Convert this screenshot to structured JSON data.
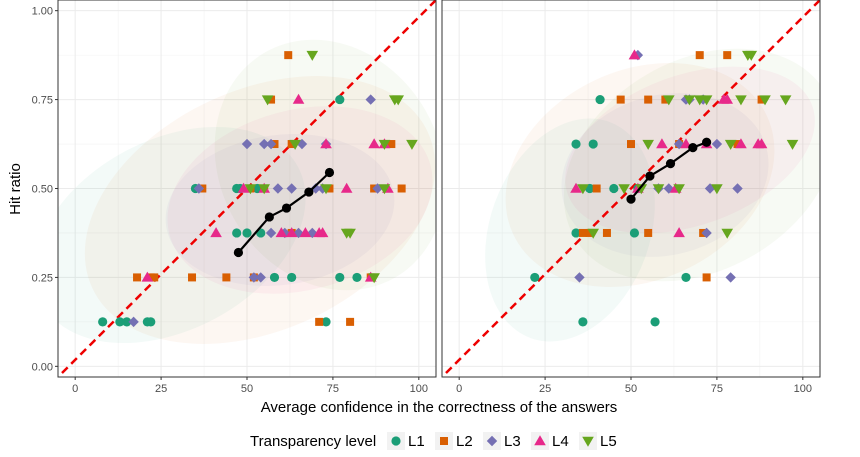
{
  "chart_data": [
    {
      "type": "scatter",
      "panel": "left",
      "xlabel": "Average confidence in the correctness of the answers",
      "ylabel": "Hit ratio",
      "xlim": [
        -5,
        105
      ],
      "ylim": [
        -0.03,
        1.03
      ],
      "xticks": [
        "0",
        "25",
        "50",
        "75",
        "100"
      ],
      "yticks": [
        "0.00",
        "0.25",
        "0.50",
        "0.75",
        "1.00"
      ],
      "grid": true,
      "reference_line": "y = x/100 (dashed red)",
      "series": [
        {
          "name": "L1",
          "points": [
            [
              8,
              0.125
            ],
            [
              13,
              0.125
            ],
            [
              15,
              0.125
            ],
            [
              21,
              0.125
            ],
            [
              22,
              0.125
            ],
            [
              35,
              0.5
            ],
            [
              47,
              0.5
            ],
            [
              48,
              0.5
            ],
            [
              47,
              0.375
            ],
            [
              50,
              0.375
            ],
            [
              53,
              0.5
            ],
            [
              54,
              0.375
            ],
            [
              58,
              0.25
            ],
            [
              63,
              0.25
            ],
            [
              73,
              0.125
            ],
            [
              77,
              0.75
            ],
            [
              77,
              0.25
            ],
            [
              82,
              0.25
            ]
          ]
        },
        {
          "name": "L2",
          "points": [
            [
              18,
              0.25
            ],
            [
              22,
              0.25
            ],
            [
              23,
              0.25
            ],
            [
              34,
              0.25
            ],
            [
              37,
              0.5
            ],
            [
              44,
              0.25
            ],
            [
              51,
              0.5
            ],
            [
              52,
              0.25
            ],
            [
              55,
              0.5
            ],
            [
              57,
              0.75
            ],
            [
              58,
              0.625
            ],
            [
              62,
              0.875
            ],
            [
              63,
              0.375
            ],
            [
              63,
              0.625
            ],
            [
              71,
              0.125
            ],
            [
              74,
              0.5
            ],
            [
              80,
              0.125
            ],
            [
              86,
              0.25
            ],
            [
              87,
              0.5
            ],
            [
              92,
              0.625
            ],
            [
              95,
              0.5
            ]
          ]
        },
        {
          "name": "L3",
          "points": [
            [
              17,
              0.125
            ],
            [
              36,
              0.5
            ],
            [
              50,
              0.625
            ],
            [
              52,
              0.25
            ],
            [
              54,
              0.25
            ],
            [
              55,
              0.625
            ],
            [
              57,
              0.625
            ],
            [
              57,
              0.375
            ],
            [
              59,
              0.5
            ],
            [
              61,
              0.375
            ],
            [
              63,
              0.5
            ],
            [
              65,
              0.375
            ],
            [
              66,
              0.625
            ],
            [
              69,
              0.375
            ],
            [
              70,
              0.5
            ],
            [
              72,
              0.5
            ],
            [
              73,
              0.625
            ],
            [
              86,
              0.75
            ],
            [
              88,
              0.5
            ]
          ]
        },
        {
          "name": "L4",
          "points": [
            [
              21,
              0.25
            ],
            [
              41,
              0.375
            ],
            [
              49,
              0.5
            ],
            [
              55,
              0.5
            ],
            [
              60,
              0.375
            ],
            [
              63,
              0.375
            ],
            [
              65,
              0.75
            ],
            [
              67,
              0.375
            ],
            [
              71,
              0.375
            ],
            [
              72,
              0.375
            ],
            [
              73,
              0.625
            ],
            [
              79,
              0.5
            ],
            [
              86,
              0.25
            ],
            [
              87,
              0.625
            ],
            [
              90,
              0.625
            ],
            [
              91,
              0.5
            ]
          ]
        },
        {
          "name": "L5",
          "points": [
            [
              51,
              0.5
            ],
            [
              55,
              0.5
            ],
            [
              56,
              0.75
            ],
            [
              64,
              0.625
            ],
            [
              69,
              0.875
            ],
            [
              73,
              0.5
            ],
            [
              79,
              0.375
            ],
            [
              80,
              0.375
            ],
            [
              87,
              0.25
            ],
            [
              90,
              0.5
            ],
            [
              90,
              0.625
            ],
            [
              93,
              0.75
            ],
            [
              94,
              0.75
            ],
            [
              98,
              0.625
            ]
          ]
        }
      ],
      "trend": [
        [
          47.5,
          0.32
        ],
        [
          56.5,
          0.42
        ],
        [
          61.5,
          0.445
        ],
        [
          68,
          0.49
        ],
        [
          74,
          0.545
        ]
      ]
    },
    {
      "type": "scatter",
      "panel": "right",
      "xlabel": "Average confidence in the correctness of the answers",
      "xlim": [
        -5,
        105
      ],
      "ylim": [
        -0.03,
        1.03
      ],
      "xticks": [
        "0",
        "25",
        "50",
        "75",
        "100"
      ],
      "grid": true,
      "reference_line": "y = x/100 (dashed red)",
      "series": [
        {
          "name": "L1",
          "points": [
            [
              22,
              0.25
            ],
            [
              34,
              0.625
            ],
            [
              34,
              0.375
            ],
            [
              36,
              0.125
            ],
            [
              38,
              0.5
            ],
            [
              39,
              0.625
            ],
            [
              41,
              0.75
            ],
            [
              45,
              0.5
            ],
            [
              51,
              0.375
            ],
            [
              52,
              0.5
            ],
            [
              57,
              0.125
            ],
            [
              66,
              0.25
            ]
          ]
        },
        {
          "name": "L2",
          "points": [
            [
              36,
              0.375
            ],
            [
              38,
              0.375
            ],
            [
              40,
              0.5
            ],
            [
              43,
              0.375
            ],
            [
              47,
              0.75
            ],
            [
              50,
              0.625
            ],
            [
              55,
              0.375
            ],
            [
              55,
              0.75
            ],
            [
              60,
              0.75
            ],
            [
              64,
              0.625
            ],
            [
              70,
              0.875
            ],
            [
              71,
              0.375
            ],
            [
              72,
              0.25
            ],
            [
              78,
              0.875
            ],
            [
              81,
              0.625
            ],
            [
              88,
              0.75
            ]
          ]
        },
        {
          "name": "L3",
          "points": [
            [
              35,
              0.25
            ],
            [
              52,
              0.875
            ],
            [
              58,
              0.5
            ],
            [
              61,
              0.5
            ],
            [
              64,
              0.625
            ],
            [
              66,
              0.75
            ],
            [
              67,
              0.75
            ],
            [
              71,
              0.75
            ],
            [
              72,
              0.375
            ],
            [
              73,
              0.5
            ],
            [
              75,
              0.625
            ],
            [
              79,
              0.25
            ],
            [
              81,
              0.5
            ]
          ]
        },
        {
          "name": "L4",
          "points": [
            [
              34,
              0.5
            ],
            [
              51,
              0.875
            ],
            [
              52,
              0.5
            ],
            [
              59,
              0.625
            ],
            [
              63,
              0.5
            ],
            [
              64,
              0.375
            ],
            [
              66,
              0.625
            ],
            [
              72,
              0.625
            ],
            [
              77,
              0.75
            ],
            [
              78,
              0.75
            ],
            [
              82,
              0.625
            ],
            [
              87,
              0.625
            ],
            [
              88,
              0.625
            ]
          ]
        },
        {
          "name": "L5",
          "points": [
            [
              36,
              0.5
            ],
            [
              39,
              0.375
            ],
            [
              48,
              0.5
            ],
            [
              53,
              0.5
            ],
            [
              55,
              0.625
            ],
            [
              58,
              0.5
            ],
            [
              61,
              0.75
            ],
            [
              64,
              0.5
            ],
            [
              67,
              0.75
            ],
            [
              70,
              0.75
            ],
            [
              72,
              0.75
            ],
            [
              75,
              0.5
            ],
            [
              78,
              0.375
            ],
            [
              79,
              0.625
            ],
            [
              82,
              0.75
            ],
            [
              84,
              0.875
            ],
            [
              85,
              0.875
            ],
            [
              89,
              0.75
            ],
            [
              95,
              0.75
            ],
            [
              97,
              0.625
            ]
          ]
        }
      ],
      "trend": [
        [
          50,
          0.47
        ],
        [
          55.5,
          0.535
        ],
        [
          61.5,
          0.57
        ],
        [
          68,
          0.615
        ],
        [
          72,
          0.63
        ]
      ]
    }
  ],
  "legend": {
    "title": "Transparency level",
    "placement": "bottom",
    "items": [
      {
        "label": "L1",
        "shape": "circle",
        "color": "#1b9e77"
      },
      {
        "label": "L2",
        "shape": "square",
        "color": "#d95f02"
      },
      {
        "label": "L3",
        "shape": "diamond",
        "color": "#7570b3"
      },
      {
        "label": "L4",
        "shape": "triangle-up",
        "color": "#e7298a"
      },
      {
        "label": "L5",
        "shape": "triangle-down",
        "color": "#66a61e"
      }
    ]
  },
  "colors": {
    "reference_line": "#ee0000",
    "trend": "#000000",
    "grid": "#ebebeb",
    "panel_border": "#333333"
  }
}
